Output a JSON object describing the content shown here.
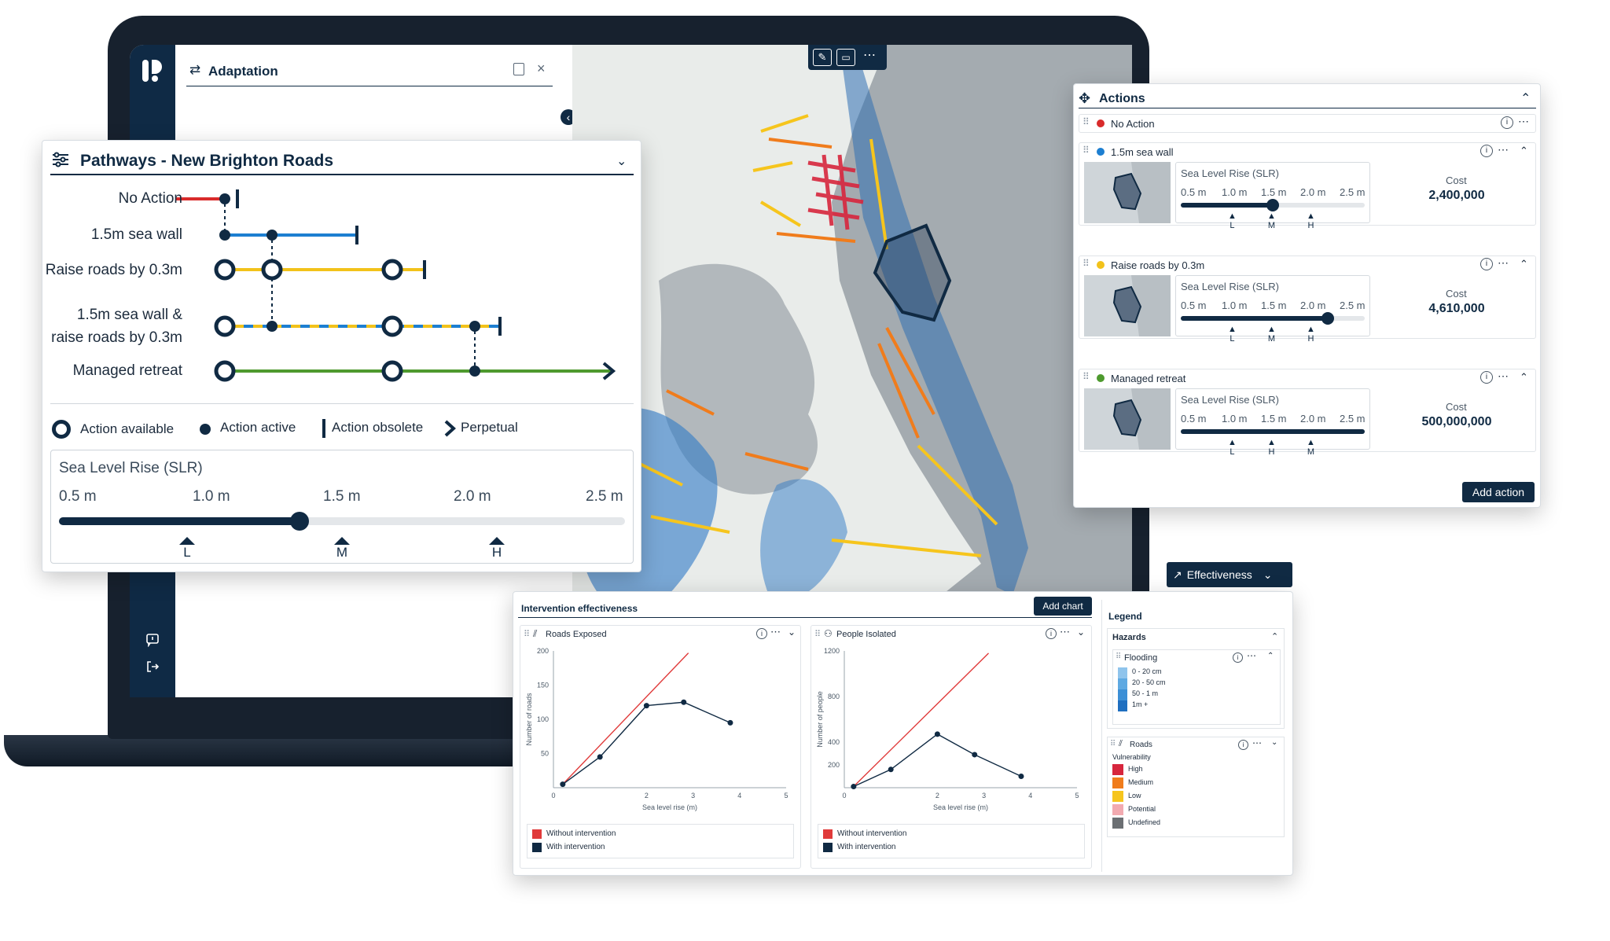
{
  "app": {
    "panel_title": "Adaptation"
  },
  "pathways": {
    "title": "Pathways - New Brighton Roads",
    "rows": [
      "No Action",
      "1.5m sea wall",
      "Raise roads by 0.3m",
      "1.5m sea wall &",
      "raise roads by 0.3m",
      "Managed retreat"
    ],
    "legend": {
      "available": "Action available",
      "active": "Action active",
      "obsolete": "Action obsolete",
      "perpetual": "Perpetual"
    },
    "slider": {
      "title": "Sea Level Rise (SLR)",
      "ticks": [
        "0.5 m",
        "1.0 m",
        "1.5 m",
        "2.0 m",
        "2.5 m"
      ],
      "value_m": 1.35,
      "markers": [
        "L",
        "M",
        "H"
      ]
    }
  },
  "actions": {
    "title": "Actions",
    "items": [
      {
        "name": "No Action",
        "color": "#d92b2b"
      },
      {
        "name": "1.5m sea wall",
        "color": "#1d7fd1",
        "slr_title": "Sea Level Rise (SLR)",
        "ticks": [
          "0.5 m",
          "1.0 m",
          "1.5 m",
          "2.0 m",
          "2.5 m"
        ],
        "value_m": 1.5,
        "markers": [
          "L",
          "M",
          "H"
        ],
        "cost_label": "Cost",
        "cost": "2,400,000"
      },
      {
        "name": "Raise roads by 0.3m",
        "color": "#f2c21a",
        "slr_title": "Sea Level Rise (SLR)",
        "ticks": [
          "0.5 m",
          "1.0 m",
          "1.5 m",
          "2.0 m",
          "2.5 m"
        ],
        "value_m": 2.1,
        "markers": [
          "L",
          "M",
          "H"
        ],
        "cost_label": "Cost",
        "cost": "4,610,000"
      },
      {
        "name": "Managed retreat",
        "color": "#4e9a2e",
        "slr_title": "Sea Level Rise (SLR)",
        "ticks": [
          "0.5 m",
          "1.0 m",
          "1.5 m",
          "2.0 m",
          "2.5 m"
        ],
        "value_m": 2.5,
        "markers": [
          "L",
          "H",
          "M"
        ],
        "cost_label": "Cost",
        "cost": "500,000,000"
      }
    ],
    "add_button": "Add action"
  },
  "effectiveness_button": "Effectiveness",
  "effectiveness": {
    "title": "Intervention effectiveness",
    "add_chart": "Add chart"
  },
  "chart_data": [
    {
      "type": "line",
      "title": "Roads Exposed",
      "xlabel": "Sea level rise (m)",
      "ylabel": "Number of roads",
      "xlim": [
        0,
        5
      ],
      "ylim": [
        0,
        200
      ],
      "xticks": [
        "0",
        "2",
        "3",
        "4",
        "5"
      ],
      "yticks": [
        "50",
        "100",
        "150",
        "200"
      ],
      "series": [
        {
          "name": "Without intervention",
          "color": "#e03a3a",
          "x": [
            0.2,
            2.9
          ],
          "y": [
            5,
            197
          ]
        },
        {
          "name": "With intervention",
          "color": "#102a43",
          "x": [
            0.2,
            1.0,
            2.0,
            2.8,
            3.8
          ],
          "y": [
            5,
            45,
            120,
            125,
            95
          ]
        }
      ]
    },
    {
      "type": "line",
      "title": "People Isolated",
      "xlabel": "Sea level rise (m)",
      "ylabel": "Number of people",
      "xlim": [
        0,
        5
      ],
      "ylim": [
        0,
        1200
      ],
      "xticks": [
        "0",
        "2",
        "3",
        "4",
        "5"
      ],
      "yticks": [
        "200",
        "400",
        "800",
        "1200"
      ],
      "series": [
        {
          "name": "Without intervention",
          "color": "#e03a3a",
          "x": [
            0.2,
            3.1
          ],
          "y": [
            10,
            1180
          ]
        },
        {
          "name": "With intervention",
          "color": "#102a43",
          "x": [
            0.2,
            1.0,
            2.0,
            2.8,
            3.8
          ],
          "y": [
            10,
            160,
            470,
            290,
            100
          ]
        }
      ]
    }
  ],
  "legend_panel": {
    "title": "Legend",
    "hazards": "Hazards",
    "flooding": {
      "title": "Flooding",
      "items": [
        {
          "label": "0 - 20 cm",
          "color": "#8fc4ec"
        },
        {
          "label": "20 - 50 cm",
          "color": "#5ea9e2"
        },
        {
          "label": "50 - 1 m",
          "color": "#3b8fd6"
        },
        {
          "label": "1m +",
          "color": "#1f6fc0"
        }
      ]
    },
    "roads": {
      "title": "Roads",
      "subtitle": "Vulnerability",
      "items": [
        {
          "label": "High",
          "color": "#d7263d"
        },
        {
          "label": "Medium",
          "color": "#f07c1c"
        },
        {
          "label": "Low",
          "color": "#f6c51d"
        },
        {
          "label": "Potential",
          "color": "#f2aab0"
        },
        {
          "label": "Undefined",
          "color": "#6b6f73"
        }
      ]
    }
  }
}
